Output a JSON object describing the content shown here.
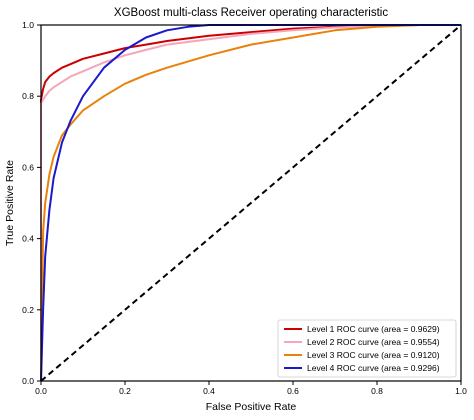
{
  "chart_data": {
    "type": "line",
    "title": "XGBoost multi-class Receiver operating characteristic",
    "xlabel": "False Positive Rate",
    "ylabel": "True Positive Rate",
    "xlim": [
      0,
      1
    ],
    "ylim": [
      0,
      1
    ],
    "xticks": [
      "0.0",
      "0.2",
      "0.4",
      "0.6",
      "0.8",
      "1.0"
    ],
    "yticks": [
      "0.0",
      "0.2",
      "0.4",
      "0.6",
      "0.8",
      "1.0"
    ],
    "grid": false,
    "legend_position": "bottom-right",
    "series": [
      {
        "name": "Level 1 ROC curve (area = 0.9629)",
        "color": "#cc0000",
        "x": [
          0,
          0,
          0.005,
          0.01,
          0.02,
          0.03,
          0.05,
          0.07,
          0.1,
          0.15,
          0.2,
          0.25,
          0.3,
          0.4,
          0.5,
          0.6,
          0.7,
          0.8,
          0.9,
          1.0
        ],
        "y": [
          0,
          0.79,
          0.82,
          0.84,
          0.855,
          0.865,
          0.88,
          0.89,
          0.905,
          0.92,
          0.935,
          0.945,
          0.955,
          0.97,
          0.98,
          0.99,
          0.995,
          0.998,
          1.0,
          1.0
        ]
      },
      {
        "name": "Level 2 ROC curve (area = 0.9554)",
        "color": "#f4a7b9",
        "x": [
          0,
          0,
          0.01,
          0.02,
          0.03,
          0.05,
          0.07,
          0.1,
          0.15,
          0.2,
          0.25,
          0.3,
          0.4,
          0.5,
          0.6,
          0.7,
          0.8,
          0.9,
          1.0
        ],
        "y": [
          0,
          0.78,
          0.8,
          0.815,
          0.825,
          0.84,
          0.855,
          0.87,
          0.895,
          0.915,
          0.93,
          0.945,
          0.96,
          0.975,
          0.985,
          0.993,
          0.997,
          1.0,
          1.0
        ]
      },
      {
        "name": "Level 3 ROC curve (area = 0.9120)",
        "color": "#e8820c",
        "x": [
          0,
          0.005,
          0.01,
          0.02,
          0.03,
          0.05,
          0.07,
          0.1,
          0.15,
          0.2,
          0.25,
          0.3,
          0.4,
          0.5,
          0.6,
          0.7,
          0.8,
          0.9,
          1.0
        ],
        "y": [
          0,
          0.42,
          0.5,
          0.58,
          0.63,
          0.69,
          0.72,
          0.76,
          0.8,
          0.835,
          0.86,
          0.88,
          0.915,
          0.945,
          0.965,
          0.985,
          0.995,
          1.0,
          1.0
        ]
      },
      {
        "name": "Level 4 ROC curve (area = 0.9296)",
        "color": "#1a1acc",
        "x": [
          0,
          0.005,
          0.01,
          0.02,
          0.03,
          0.05,
          0.07,
          0.1,
          0.15,
          0.2,
          0.25,
          0.3,
          0.35,
          0.4,
          0.5,
          0.6,
          0.8,
          1.0
        ],
        "y": [
          0,
          0.2,
          0.35,
          0.48,
          0.57,
          0.67,
          0.73,
          0.8,
          0.88,
          0.93,
          0.965,
          0.985,
          0.995,
          1.0,
          1.0,
          1.0,
          1.0,
          1.0
        ]
      }
    ],
    "reference_line": {
      "color": "#000000",
      "style": "dashed",
      "x": [
        0,
        1
      ],
      "y": [
        0,
        1
      ]
    }
  }
}
